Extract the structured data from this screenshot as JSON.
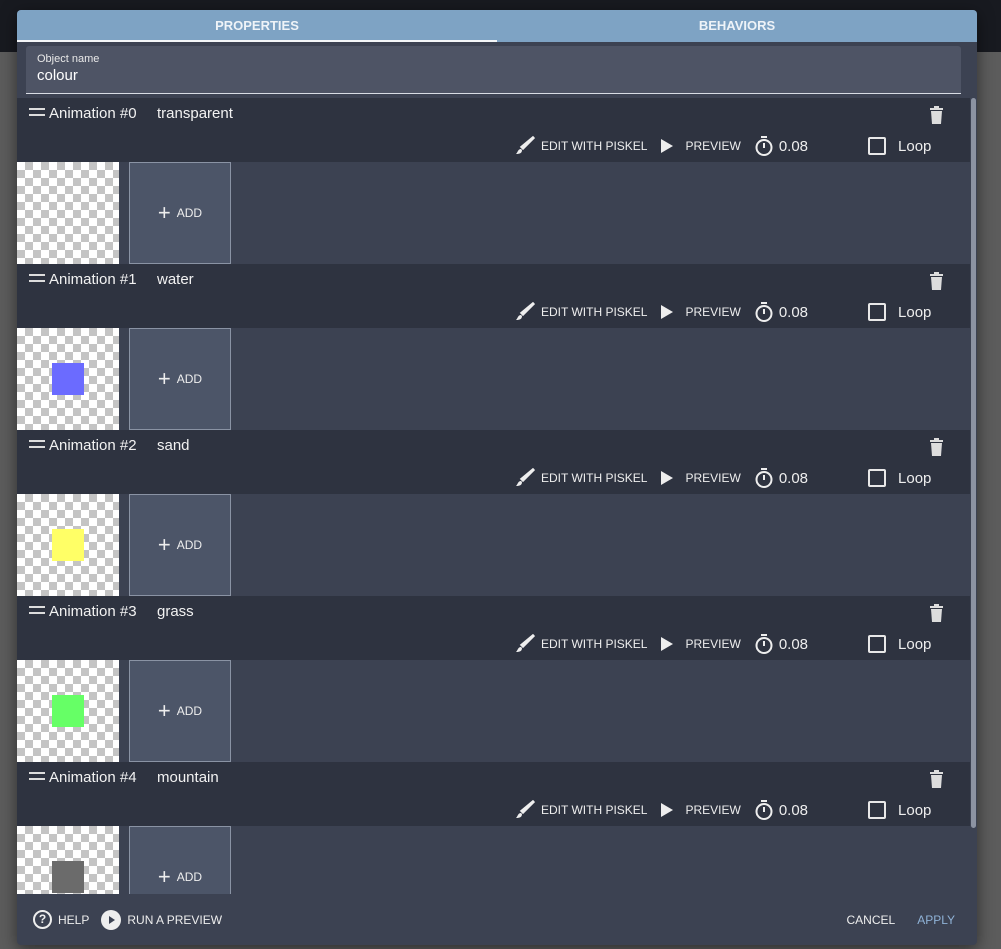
{
  "tabs": [
    {
      "label": "PROPERTIES",
      "active": true
    },
    {
      "label": "BEHAVIORS",
      "active": false
    }
  ],
  "object_name": {
    "label": "Object name",
    "value": "colour"
  },
  "toolbar": {
    "edit_label": "EDIT WITH PISKEL",
    "preview_label": "PREVIEW",
    "loop_label": "Loop",
    "add_label": "ADD"
  },
  "animations": [
    {
      "title": "Animation #0",
      "name": "transparent",
      "time": "0.08",
      "loop": false,
      "color": null
    },
    {
      "title": "Animation #1",
      "name": "water",
      "time": "0.08",
      "loop": false,
      "color": "#6b6bff"
    },
    {
      "title": "Animation #2",
      "name": "sand",
      "time": "0.08",
      "loop": false,
      "color": "#ffff66"
    },
    {
      "title": "Animation #3",
      "name": "grass",
      "time": "0.08",
      "loop": false,
      "color": "#66ff66"
    },
    {
      "title": "Animation #4",
      "name": "mountain",
      "time": "0.08",
      "loop": false,
      "color": "#6b6b6b"
    }
  ],
  "footer": {
    "help": "HELP",
    "run_preview": "RUN A PREVIEW",
    "cancel": "CANCEL",
    "apply": "APPLY"
  },
  "colors": {
    "tab_bar": "#7ea3c4",
    "dialog": "#3c4252",
    "header": "#2e3340",
    "apply": "#8fb2d6"
  }
}
